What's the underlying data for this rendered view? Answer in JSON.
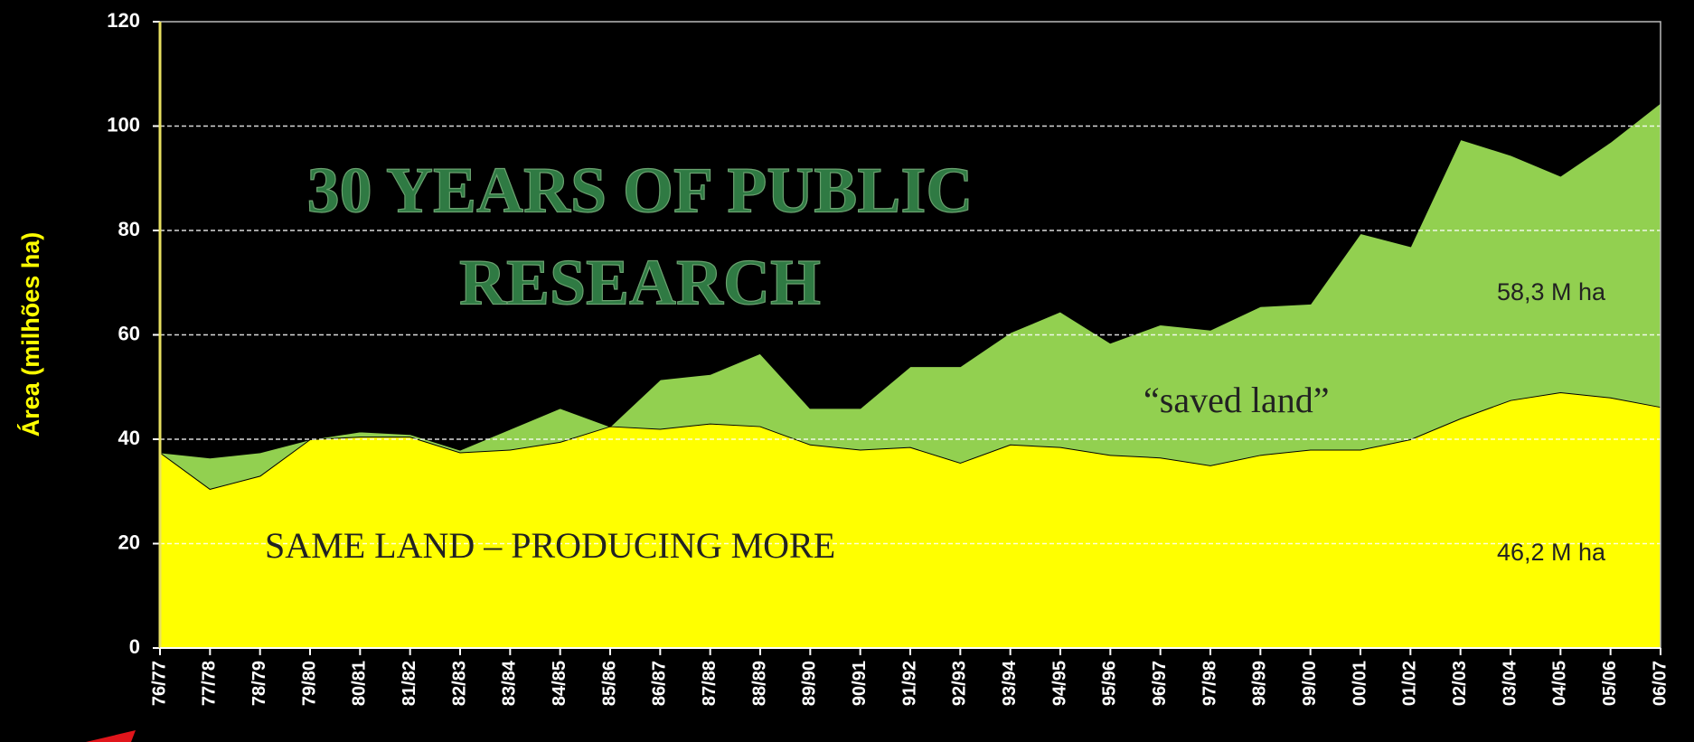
{
  "chart_data": {
    "type": "stacked_area",
    "title": [
      "30 YEARS OF PUBLIC",
      "RESEARCH"
    ],
    "y_label": "Área (milhões ha)",
    "categories": [
      "76/77",
      "77/78",
      "78/79",
      "79/80",
      "80/81",
      "81/82",
      "82/83",
      "83/84",
      "84/85",
      "85/86",
      "86/87",
      "87/88",
      "88/89",
      "89/90",
      "90/91",
      "91/92",
      "92/93",
      "93/94",
      "94/95",
      "95/96",
      "96/97",
      "97/98",
      "98/99",
      "99/00",
      "00/01",
      "01/02",
      "02/03",
      "03/04",
      "04/05",
      "05/06",
      "06/07"
    ],
    "series": [
      {
        "name": "SAME LAND – PRODUCING MORE",
        "color": "#ffff00",
        "values": [
          37.5,
          30.5,
          33,
          40,
          40.5,
          40.5,
          37.5,
          38,
          39.5,
          42.5,
          42,
          43,
          42.5,
          39,
          38,
          38.5,
          35.5,
          39,
          38.5,
          37,
          36.5,
          35,
          37,
          38,
          38,
          40,
          44,
          47.5,
          49,
          48,
          46.2
        ]
      },
      {
        "name": "“saved land”",
        "color": "#92d050",
        "values": [
          0,
          6,
          4.5,
          0,
          1,
          0.5,
          0.5,
          4,
          6.5,
          0,
          9.5,
          9.5,
          14,
          7,
          8,
          15.5,
          18.5,
          21.5,
          26,
          21.5,
          25.5,
          26,
          28.5,
          28,
          41.5,
          37,
          53.5,
          47,
          41.5,
          49,
          58.3
        ]
      }
    ],
    "annotations": [
      "58,3 M ha",
      "46,2 M ha"
    ],
    "ylim": [
      0,
      120
    ],
    "yticks": [
      0,
      20,
      40,
      60,
      80,
      100,
      120
    ],
    "grid": true
  }
}
